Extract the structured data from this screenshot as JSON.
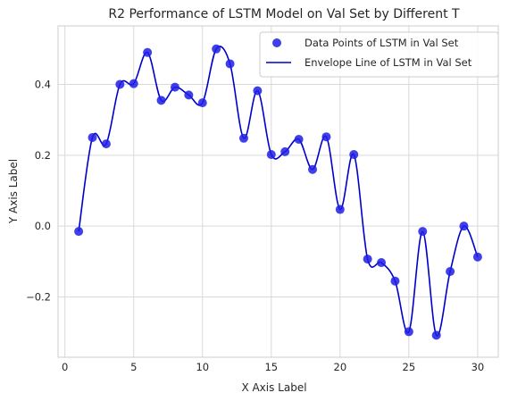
{
  "chart_data": {
    "type": "line",
    "title": "R2 Performance of LSTM Model on Val Set by Different T",
    "xlabel": "X Axis Label",
    "ylabel": "Y Axis Label",
    "xlim": [
      -0.5,
      31.5
    ],
    "ylim": [
      -0.37,
      0.565
    ],
    "xticks": [
      0,
      5,
      10,
      15,
      20,
      25,
      30
    ],
    "yticks": [
      -0.2,
      0.0,
      0.2,
      0.4
    ],
    "ytick_labels": [
      "−0.2",
      "0.0",
      "0.2",
      "0.4"
    ],
    "grid": true,
    "legend": "top-right",
    "colors": {
      "points": "#1f1fe6",
      "line": "#0000cc",
      "grid": "#d9d9d9",
      "spine": "#cccccc"
    },
    "series": [
      {
        "name": "Data Points of LSTM in Val Set",
        "kind": "scatter",
        "x": [
          1,
          2,
          3,
          4,
          5,
          6,
          7,
          8,
          9,
          10,
          11,
          12,
          13,
          14,
          15,
          16,
          17,
          18,
          19,
          20,
          21,
          22,
          23,
          24,
          25,
          26,
          27,
          28,
          29,
          30
        ],
        "values": [
          -0.015,
          0.25,
          0.232,
          0.4,
          0.402,
          0.49,
          0.355,
          0.392,
          0.37,
          0.348,
          0.5,
          0.458,
          0.248,
          0.382,
          0.202,
          0.21,
          0.245,
          0.16,
          0.252,
          0.047,
          0.202,
          -0.093,
          -0.103,
          -0.155,
          -0.298,
          -0.015,
          -0.308,
          -0.128,
          0.0,
          -0.087
        ]
      },
      {
        "name": "Envelope Line of LSTM in Val Set",
        "kind": "line",
        "x": [
          1,
          2,
          3,
          4,
          5,
          6,
          7,
          8,
          9,
          10,
          11,
          12,
          13,
          14,
          15,
          16,
          17,
          18,
          19,
          20,
          21,
          22,
          23,
          24,
          25,
          26,
          27,
          28,
          29,
          30
        ],
        "values": [
          -0.015,
          0.25,
          0.232,
          0.4,
          0.402,
          0.49,
          0.355,
          0.392,
          0.37,
          0.348,
          0.5,
          0.458,
          0.248,
          0.382,
          0.202,
          0.21,
          0.245,
          0.16,
          0.252,
          0.047,
          0.202,
          -0.093,
          -0.103,
          -0.155,
          -0.298,
          -0.015,
          -0.308,
          -0.128,
          0.0,
          -0.087
        ]
      }
    ]
  }
}
